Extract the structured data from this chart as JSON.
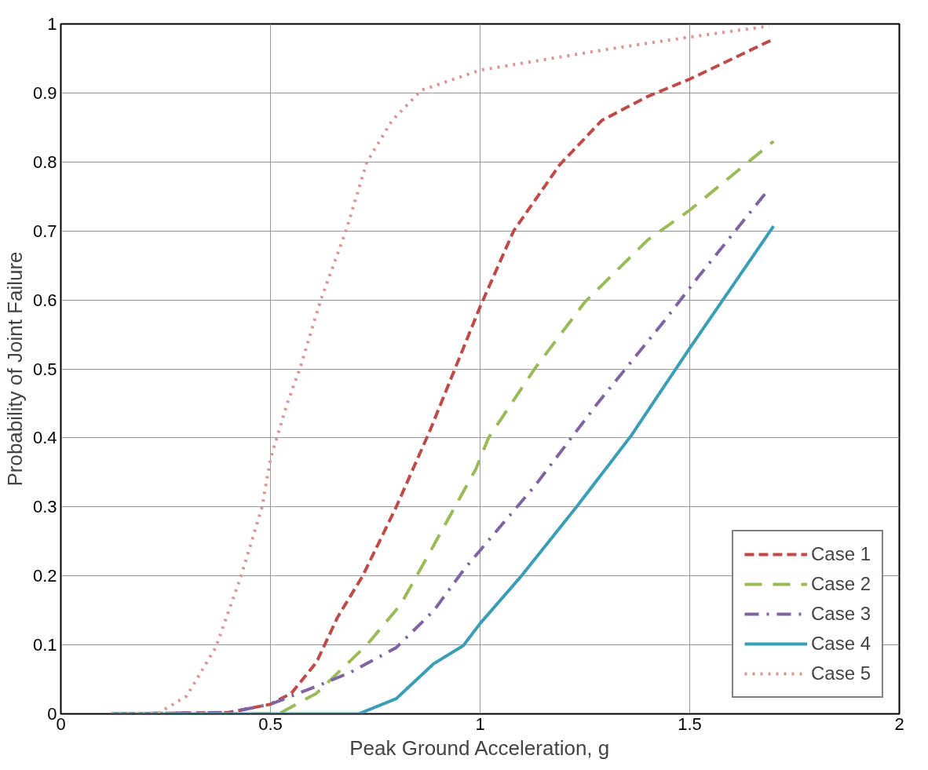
{
  "chart_data": {
    "type": "line",
    "xlabel": "Peak Ground Acceleration, g",
    "ylabel": "Probability of Joint Failure",
    "xlim": [
      0,
      2
    ],
    "xticks": [
      0,
      0.5,
      1,
      1.5,
      2
    ],
    "ylim": [
      0,
      1
    ],
    "yticks": [
      0,
      0.1,
      0.2,
      0.3,
      0.4,
      0.5,
      0.6,
      0.7,
      0.8,
      0.9,
      1
    ],
    "grid": true,
    "legend": "bottom right",
    "marker": "none",
    "series": [
      {
        "name": "Case 1",
        "color": "#be4b48",
        "line_style": "dashed",
        "x": [
          0.12,
          0.4,
          0.5,
          0.55,
          0.61,
          0.66,
          0.72,
          0.8,
          0.88,
          0.94,
          1.0,
          1.08,
          1.19,
          1.29,
          1.4,
          1.5,
          1.7
        ],
        "values": [
          0,
          0.002,
          0.014,
          0.03,
          0.075,
          0.14,
          0.2,
          0.3,
          0.41,
          0.5,
          0.59,
          0.7,
          0.796,
          0.86,
          0.895,
          0.92,
          0.978
        ]
      },
      {
        "name": "Case 2",
        "color": "#9bbb59",
        "line_style": "longdash",
        "x": [
          0.12,
          0.52,
          0.61,
          0.73,
          0.81,
          0.88,
          0.99,
          1.02,
          1.13,
          1.25,
          1.4,
          1.5,
          1.7
        ],
        "values": [
          0,
          0,
          0.03,
          0.1,
          0.158,
          0.234,
          0.355,
          0.4,
          0.5,
          0.597,
          0.687,
          0.73,
          0.83
        ]
      },
      {
        "name": "Case 3",
        "color": "#8064a2",
        "line_style": "dashdot",
        "x": [
          0.12,
          0.4,
          0.5,
          0.61,
          0.69,
          0.8,
          0.89,
          0.96,
          1.0,
          1.13,
          1.28,
          1.44,
          1.52,
          1.68
        ],
        "values": [
          0,
          0.002,
          0.014,
          0.04,
          0.06,
          0.096,
          0.15,
          0.208,
          0.237,
          0.33,
          0.45,
          0.57,
          0.633,
          0.754
        ]
      },
      {
        "name": "Case 4",
        "color": "#3a9fb5",
        "line_style": "solid",
        "x": [
          0.12,
          0.71,
          0.8,
          0.89,
          0.96,
          1.0,
          1.1,
          1.23,
          1.36,
          1.5,
          1.7
        ],
        "values": [
          0,
          0,
          0.022,
          0.073,
          0.099,
          0.131,
          0.201,
          0.3,
          0.403,
          0.53,
          0.707
        ]
      },
      {
        "name": "Case 5",
        "color": "#d99694",
        "line_style": "dotted",
        "x": [
          0.12,
          0.23,
          0.3,
          0.37,
          0.43,
          0.48,
          0.5,
          0.54,
          0.57,
          0.62,
          0.68,
          0.73,
          0.79,
          0.86,
          1.0,
          1.29,
          1.5,
          1.69
        ],
        "values": [
          0,
          0,
          0.026,
          0.097,
          0.2,
          0.3,
          0.37,
          0.45,
          0.5,
          0.6,
          0.7,
          0.8,
          0.86,
          0.904,
          0.933,
          0.962,
          0.981,
          0.997
        ]
      }
    ]
  }
}
